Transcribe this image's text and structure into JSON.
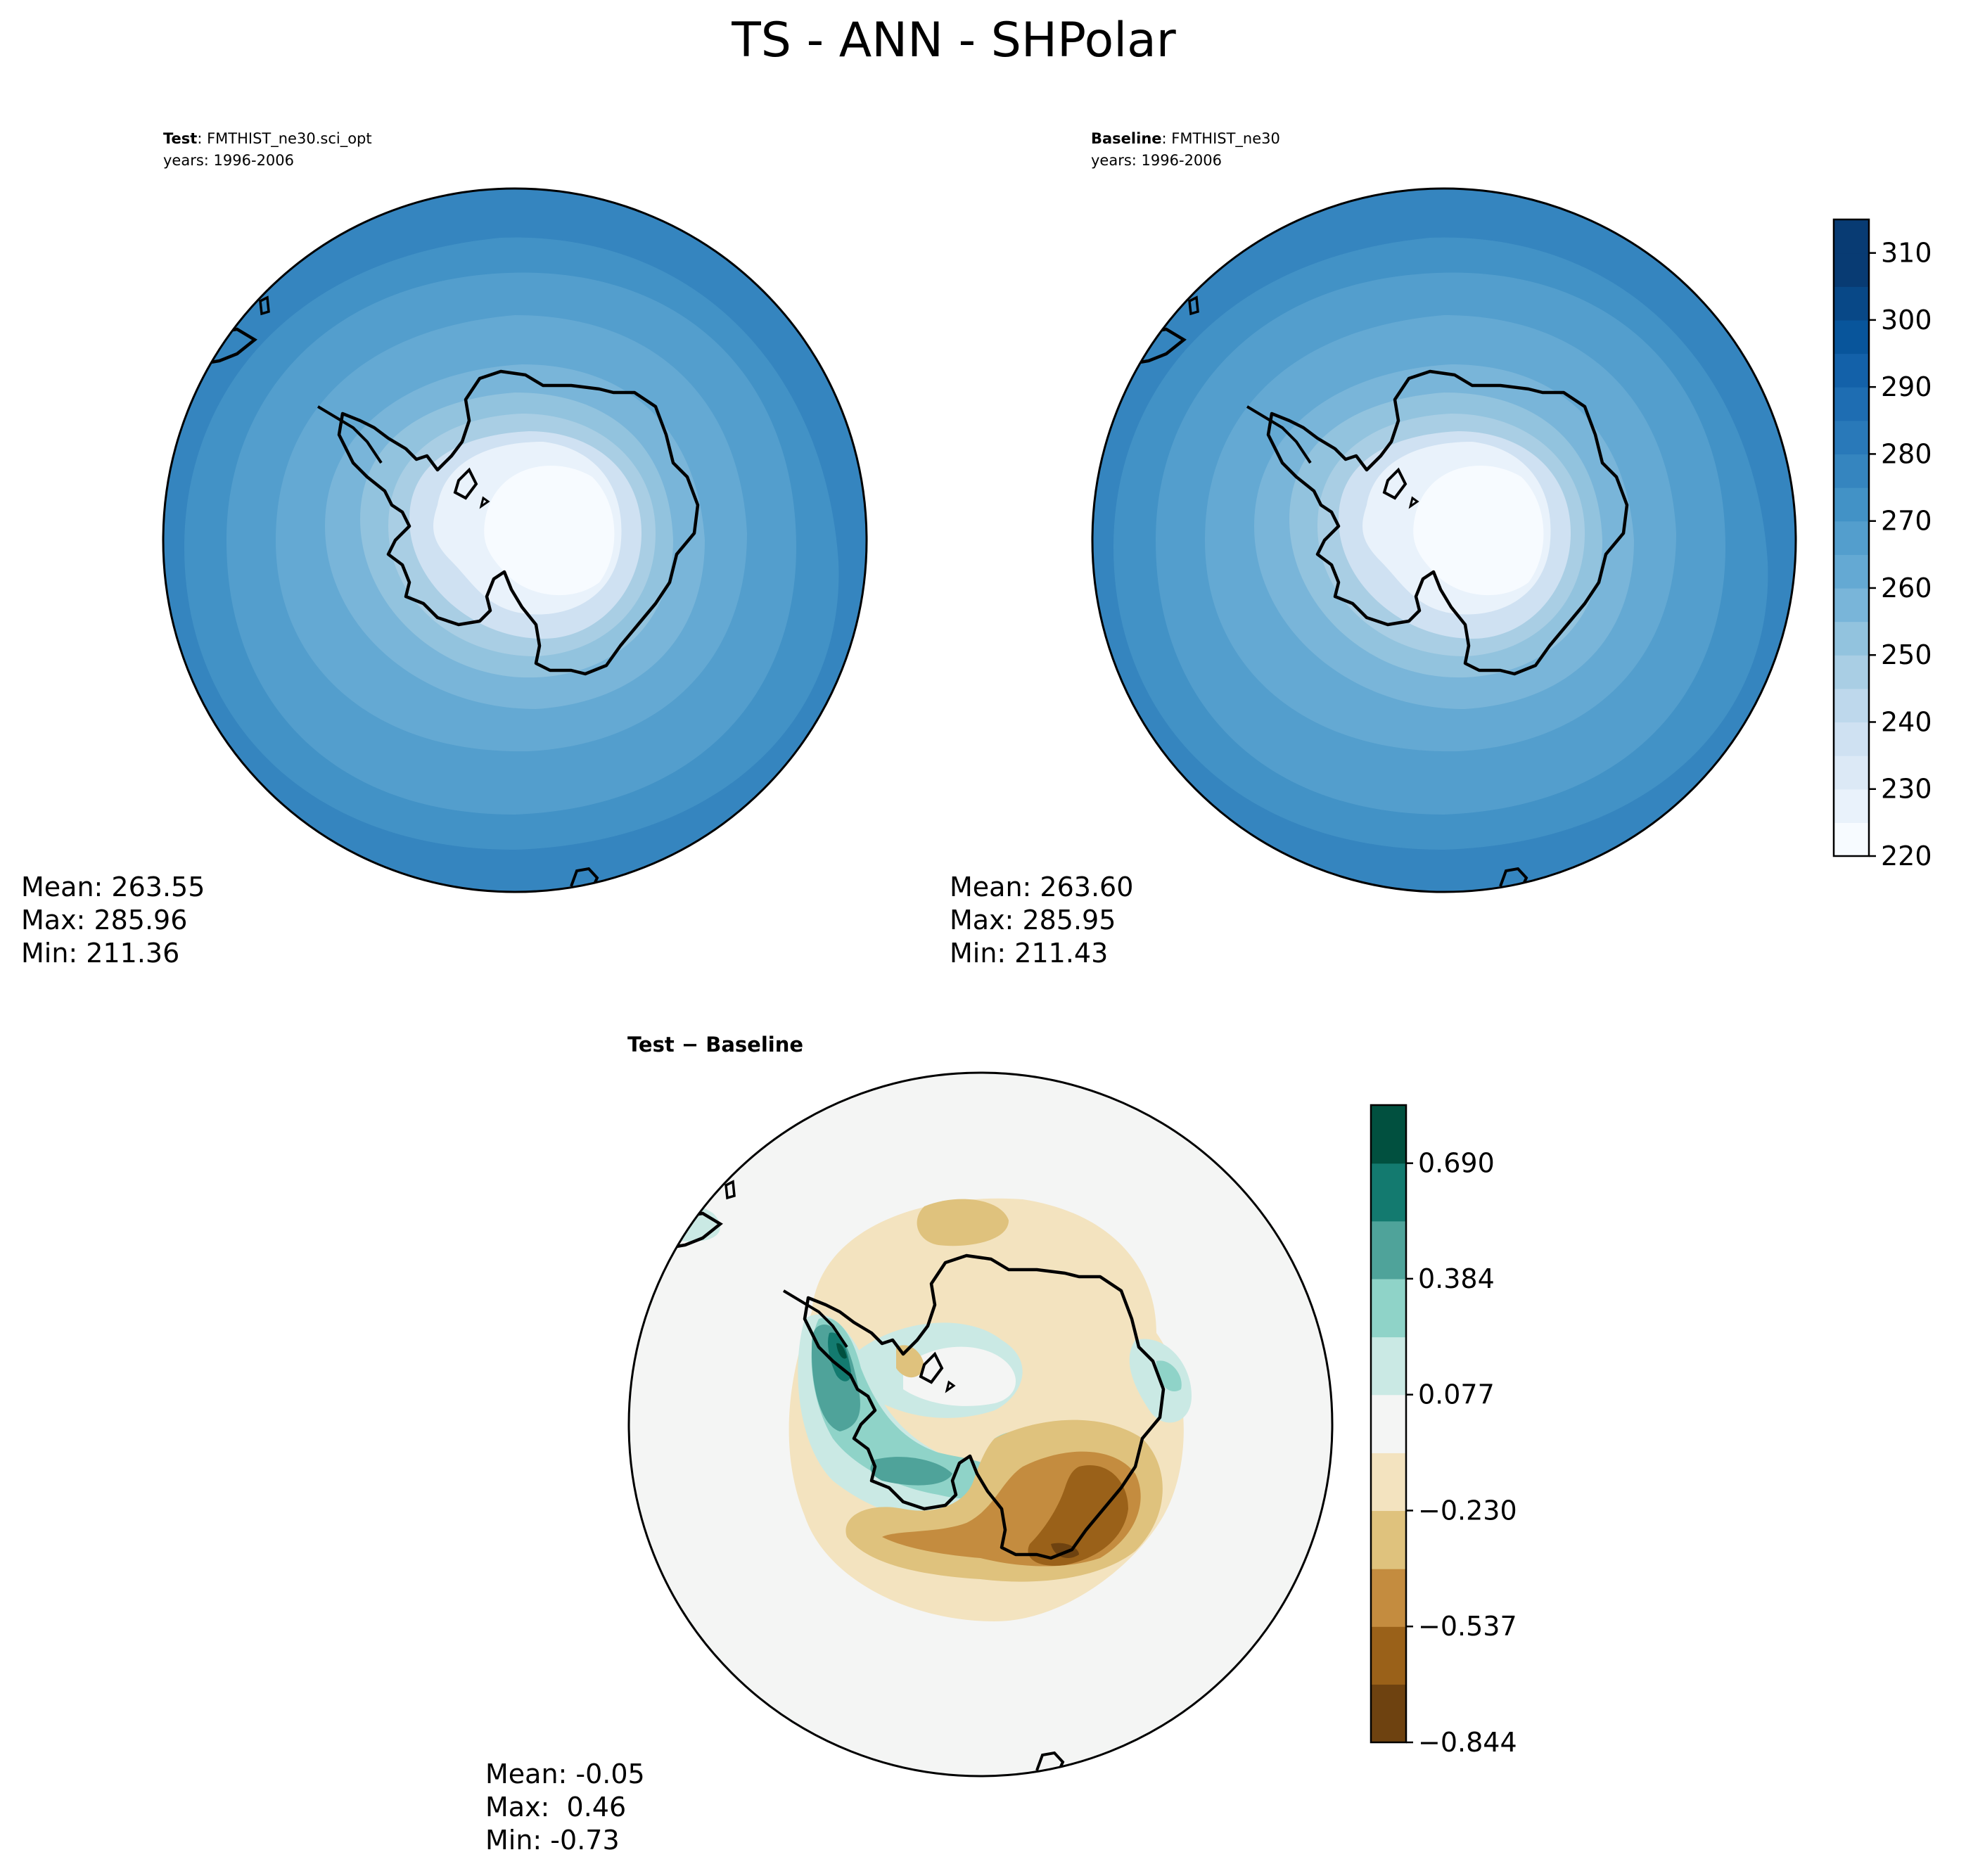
{
  "title": "TS - ANN - SHPolar",
  "panels": {
    "test": {
      "label_bold": "Test",
      "label_rest": ": FMTHIST_ne30.sci_opt",
      "years": "years: 1996-2006",
      "stats": {
        "mean": "Mean: 263.55",
        "max": "Max: 285.96",
        "min": "Min: 211.36"
      }
    },
    "baseline": {
      "label_bold": "Baseline",
      "label_rest": ": FMTHIST_ne30",
      "years": "years: 1996-2006",
      "stats": {
        "mean": "Mean: 263.60",
        "max": "Max: 285.95",
        "min": "Min: 211.43"
      }
    },
    "diff": {
      "label_bold": "Test − Baseline",
      "stats": {
        "mean": "Mean: -0.05",
        "max": "Max:  0.46",
        "min": "Min: -0.73"
      }
    }
  },
  "chart_data": [
    {
      "type": "heatmap",
      "name": "test",
      "projection": "south-polar-stereographic",
      "colormap": "Blues",
      "colorbar_ticks": [
        "220",
        "230",
        "240",
        "250",
        "260",
        "270",
        "280",
        "290",
        "300",
        "310"
      ],
      "levels": [
        220,
        225,
        230,
        235,
        240,
        245,
        250,
        255,
        260,
        265,
        270,
        275,
        280,
        285,
        290,
        295,
        300,
        305,
        310,
        315
      ],
      "mean": 263.55,
      "max": 285.96,
      "min": 211.36
    },
    {
      "type": "heatmap",
      "name": "baseline",
      "projection": "south-polar-stereographic",
      "colormap": "Blues",
      "colorbar_ticks": [
        "220",
        "230",
        "240",
        "250",
        "260",
        "270",
        "280",
        "290",
        "300",
        "310"
      ],
      "levels": [
        220,
        225,
        230,
        235,
        240,
        245,
        250,
        255,
        260,
        265,
        270,
        275,
        280,
        285,
        290,
        295,
        300,
        305,
        310,
        315
      ],
      "mean": 263.6,
      "max": 285.95,
      "min": 211.43
    },
    {
      "type": "heatmap",
      "name": "difference",
      "projection": "south-polar-stereographic",
      "colormap": "BrBG",
      "colorbar_ticks": [
        "−0.844",
        "−0.537",
        "−0.230",
        "0.077",
        "0.384",
        "0.690"
      ],
      "levels": [
        -0.844,
        -0.69,
        -0.537,
        -0.384,
        -0.23,
        -0.077,
        0.077,
        0.23,
        0.384,
        0.537,
        0.69,
        0.844
      ],
      "mean": -0.05,
      "max": 0.46,
      "min": -0.73
    }
  ],
  "colors": {
    "blues": [
      "#f7fbff",
      "#e9f2fb",
      "#dce9f6",
      "#cfe1f2",
      "#bed8ec",
      "#a9cee4",
      "#92c3de",
      "#79b5d9",
      "#64a9d3",
      "#539ecd",
      "#4292c6",
      "#3585bf",
      "#2979b9",
      "#1e6db2",
      "#1361a9",
      "#08559b",
      "#084887",
      "#083b73"
    ],
    "brbg": [
      "#6e4210",
      "#9a6119",
      "#c48c3f",
      "#dfc27d",
      "#f3e3bf",
      "#f4f5f4",
      "#cae9e4",
      "#8fd3c8",
      "#4fa39a",
      "#137a6f",
      "#01503f"
    ]
  }
}
